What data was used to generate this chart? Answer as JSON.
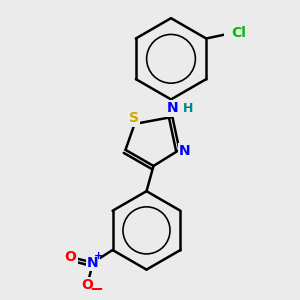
{
  "background_color": "#ebebeb",
  "bond_color": "#000000",
  "bond_width": 1.8,
  "atoms": {
    "Cl": {
      "color": "#00bb00",
      "fontsize": 10,
      "fontweight": "bold"
    },
    "S": {
      "color": "#ccaa00",
      "fontsize": 10,
      "fontweight": "bold"
    },
    "N": {
      "color": "#0000ff",
      "fontsize": 10,
      "fontweight": "bold"
    },
    "H": {
      "color": "#008888",
      "fontsize": 10,
      "fontweight": "bold"
    },
    "O": {
      "color": "#ff0000",
      "fontsize": 10,
      "fontweight": "bold"
    }
  },
  "figsize": [
    3.0,
    3.0
  ],
  "dpi": 100
}
